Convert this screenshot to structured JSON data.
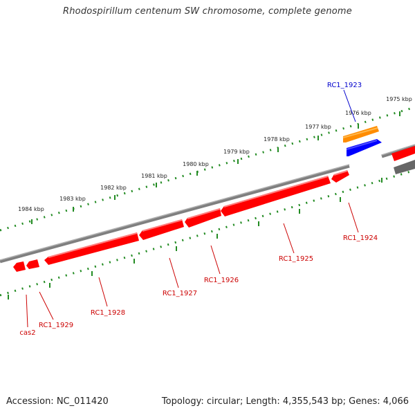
{
  "title": "Rhodospirillum centenum SW chromosome, complete genome",
  "footer": {
    "accession": "Accession: NC_011420",
    "summary": "Topology: circular; Length: 4,355,543 bp; Genes: 4,066"
  },
  "colors": {
    "backbone": "#7f7f7f",
    "scale_ticks": "#228b22",
    "gene_red": "#ff0000",
    "gene_label_red": "#cc0000",
    "gene_orange": "#ff8c00",
    "gene_blue": "#0000ff",
    "label_blue": "#0000cc",
    "gene_gray": "#666666"
  },
  "scale_labels": [
    "1975 kbp",
    "1976 kbp",
    "1977 kbp",
    "1978 kbp",
    "1979 kbp",
    "1980 kbp",
    "1981 kbp",
    "1982 kbp",
    "1983 kbp",
    "1984 kbp"
  ],
  "gene_labels": [
    "RC1_1923",
    "RC1_1924",
    "RC1_1925",
    "RC1_1926",
    "RC1_1927",
    "RC1_1928",
    "RC1_1929",
    "cas2"
  ]
}
